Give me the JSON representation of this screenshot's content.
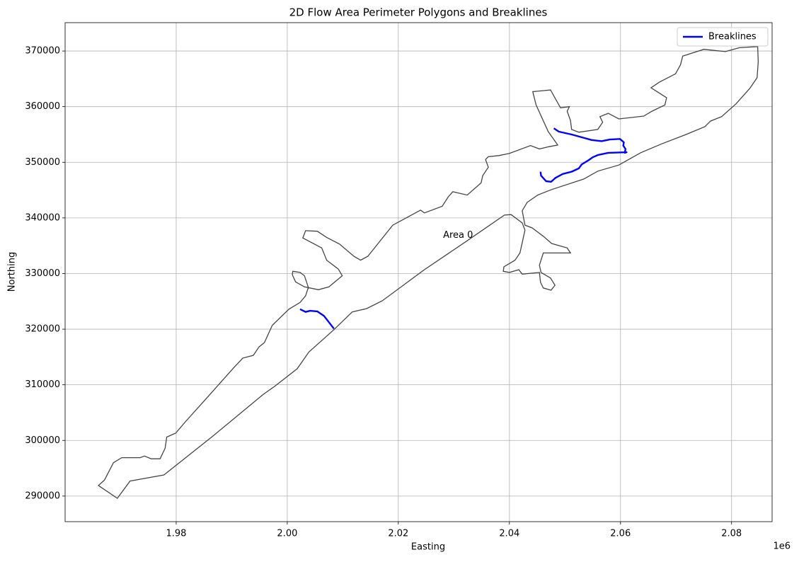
{
  "chart_data": {
    "type": "polygon",
    "title": "2D Flow Area Perimeter Polygons and Breaklines",
    "x_label": "Easting",
    "y_label": "Northing",
    "x_offset_text": "1e6",
    "xlim": [
      1960000,
      2087300
    ],
    "ylim": [
      285400,
      375100
    ],
    "xticks": [
      {
        "value": 1980000,
        "label": "1.98"
      },
      {
        "value": 2000000,
        "label": "2.00"
      },
      {
        "value": 2020000,
        "label": "2.02"
      },
      {
        "value": 2040000,
        "label": "2.04"
      },
      {
        "value": 2060000,
        "label": "2.06"
      },
      {
        "value": 2080000,
        "label": "2.08"
      }
    ],
    "yticks": [
      290000,
      300000,
      310000,
      320000,
      330000,
      340000,
      350000,
      360000,
      370000
    ],
    "grid": true,
    "legend_position": "upper-right",
    "polygons": [
      {
        "name": "Area 0",
        "color": "#444444",
        "x": [
          1966000,
          1969400,
          1971700,
          1977800,
          1986500,
          1995700,
          1997700,
          2001800,
          2003900,
          2008400,
          2011700,
          2014300,
          2017100,
          2024700,
          2032400,
          2039100,
          2040300,
          2042300,
          2042800,
          2041900,
          2041000,
          2039000,
          2038900,
          2040000,
          2041700,
          2042300,
          2045400,
          2045600,
          2046100,
          2047500,
          2048200,
          2047400,
          2045700,
          2045400,
          2046100,
          2051000,
          2050400,
          2047600,
          2046100,
          2044100,
          2042800,
          2042300,
          2043200,
          2045100,
          2047600,
          2053400,
          2055900,
          2059700,
          2063600,
          2067400,
          2071800,
          2075200,
          2076200,
          2078200,
          2080800,
          2083300,
          2084600,
          2084800,
          2084700,
          2081400,
          2078900,
          2075000,
          2071200,
          2070800,
          2069900,
          2067000,
          2065500,
          2068300,
          2068000,
          2065700,
          2064200,
          2059700,
          2057800,
          2056300,
          2056800,
          2055900,
          2052500,
          2051200,
          2051000,
          2050400,
          2050800,
          2049200,
          2047400,
          2044200,
          2044800,
          2047000,
          2048700,
          2047100,
          2045400,
          2043800,
          2040000,
          2038100,
          2036200,
          2035700,
          2036200,
          2035200,
          2034900,
          2032400,
          2029800,
          2029000,
          2027900,
          2024700,
          2024000,
          2019000,
          2014500,
          2013200,
          2012000,
          2009400,
          2007100,
          2005400,
          2003300,
          2002800,
          2006200,
          2007100,
          2009200,
          2009900,
          2007500,
          2005600,
          2003100,
          2001500,
          2000900,
          2001000,
          2002300,
          2003100,
          2003800,
          2003300,
          2002300,
          2000300,
          1997300,
          1995900,
          1994900,
          1993900,
          1992000,
          1990300,
          1985200,
          1981700,
          1979900,
          1978300,
          1978000,
          1977100,
          1975500,
          1974300,
          1973500,
          1970200,
          1968700,
          1967100
        ],
        "y": [
          291900,
          289600,
          292700,
          293800,
          300700,
          308300,
          309700,
          312900,
          315900,
          319900,
          323100,
          323700,
          325100,
          330700,
          335900,
          340500,
          340600,
          339100,
          337800,
          333700,
          332400,
          331200,
          330400,
          330200,
          330700,
          329900,
          330200,
          328400,
          327400,
          327000,
          327900,
          329200,
          330200,
          331500,
          333700,
          333700,
          334600,
          335400,
          336700,
          338200,
          338700,
          341300,
          342800,
          344100,
          345100,
          347000,
          348400,
          349500,
          351700,
          353300,
          355000,
          356400,
          357400,
          358200,
          360500,
          363300,
          365200,
          368100,
          370800,
          370600,
          369900,
          370300,
          369100,
          367500,
          365900,
          364400,
          363400,
          361600,
          360300,
          359200,
          358300,
          357800,
          358800,
          358200,
          357200,
          355900,
          355400,
          355900,
          357500,
          359200,
          360000,
          359800,
          363000,
          362700,
          360300,
          355500,
          353100,
          352800,
          352400,
          353000,
          351600,
          351200,
          351000,
          350500,
          349100,
          347600,
          346300,
          344100,
          344700,
          343800,
          342100,
          340900,
          341400,
          338700,
          333100,
          332400,
          333100,
          335300,
          336500,
          337600,
          337700,
          336400,
          334600,
          332400,
          330800,
          329600,
          327600,
          327100,
          327600,
          328500,
          329800,
          330400,
          330200,
          329600,
          327500,
          326000,
          324800,
          323600,
          320700,
          317600,
          316800,
          315300,
          314800,
          313000,
          307300,
          303400,
          301300,
          300600,
          298600,
          296700,
          296700,
          297200,
          296900,
          296900,
          296000,
          292900
        ]
      }
    ],
    "series": [
      {
        "name": "Breaklines",
        "color": "#0000ff",
        "x": [
          2002300,
          2003300,
          2004100,
          2005400,
          2006600,
          2008400,
          null,
          2048000,
          2048900,
          2051200,
          2053000,
          2054800,
          2056600,
          2058100,
          2059900,
          2060600,
          2060500,
          2060900,
          2060800,
          2061100,
          2057800,
          2055900,
          2055000,
          2054300,
          2053000,
          2052500,
          2051200,
          2049600,
          2048300,
          2047500,
          2046600,
          2045700,
          2045600
        ],
        "y": [
          323600,
          323100,
          323300,
          323200,
          322400,
          320100,
          null,
          356100,
          355500,
          355000,
          354500,
          354000,
          353800,
          354100,
          354200,
          353600,
          353000,
          352400,
          351700,
          351800,
          351700,
          351300,
          350900,
          350400,
          349600,
          348900,
          348300,
          347900,
          347200,
          346500,
          346600,
          347600,
          348300
        ]
      }
    ]
  }
}
